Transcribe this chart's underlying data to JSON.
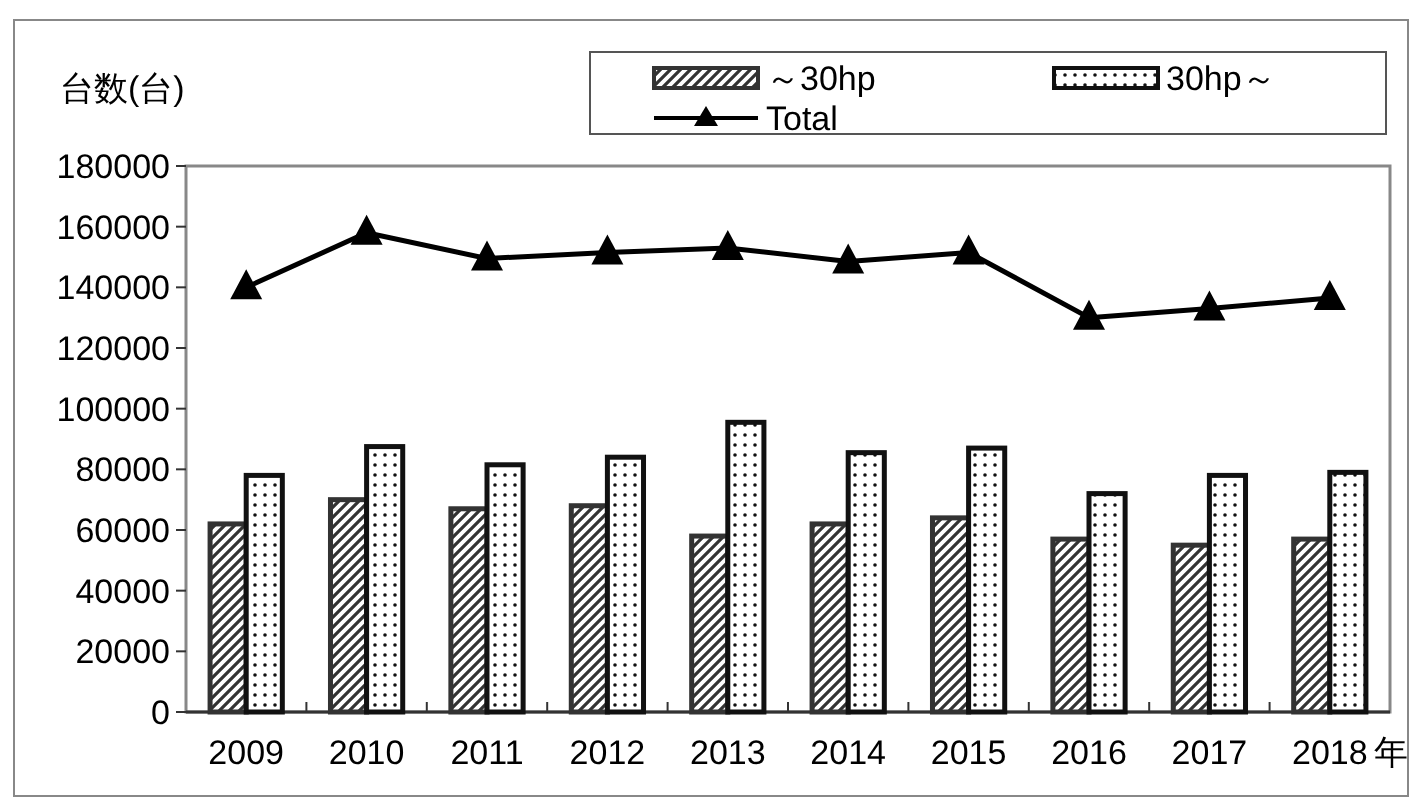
{
  "chart_data": {
    "type": "bar",
    "ylabel": "台数(台)",
    "xlabel": "年",
    "categories": [
      "2009",
      "2010",
      "2011",
      "2012",
      "2013",
      "2014",
      "2015",
      "2016",
      "2017",
      "2018"
    ],
    "series": [
      {
        "name": "～30hp",
        "color": "#333333",
        "values": [
          62000,
          70000,
          67000,
          68000,
          58000,
          62000,
          64000,
          57000,
          55000,
          57000
        ]
      },
      {
        "name": "30hp～",
        "color": "#111111",
        "values": [
          78000,
          87500,
          81500,
          84000,
          95500,
          85500,
          87000,
          72000,
          78000,
          79000
        ]
      },
      {
        "name": "Total",
        "type": "line",
        "color": "#000000",
        "marker": "triangle",
        "values": [
          140000,
          158000,
          149500,
          151500,
          153000,
          148500,
          151500,
          130000,
          133000,
          136500
        ]
      }
    ],
    "ylim": [
      0,
      180000
    ],
    "yticks": [
      0,
      20000,
      40000,
      60000,
      80000,
      100000,
      120000,
      140000,
      160000,
      180000
    ],
    "grid": false,
    "legend": "top right"
  }
}
